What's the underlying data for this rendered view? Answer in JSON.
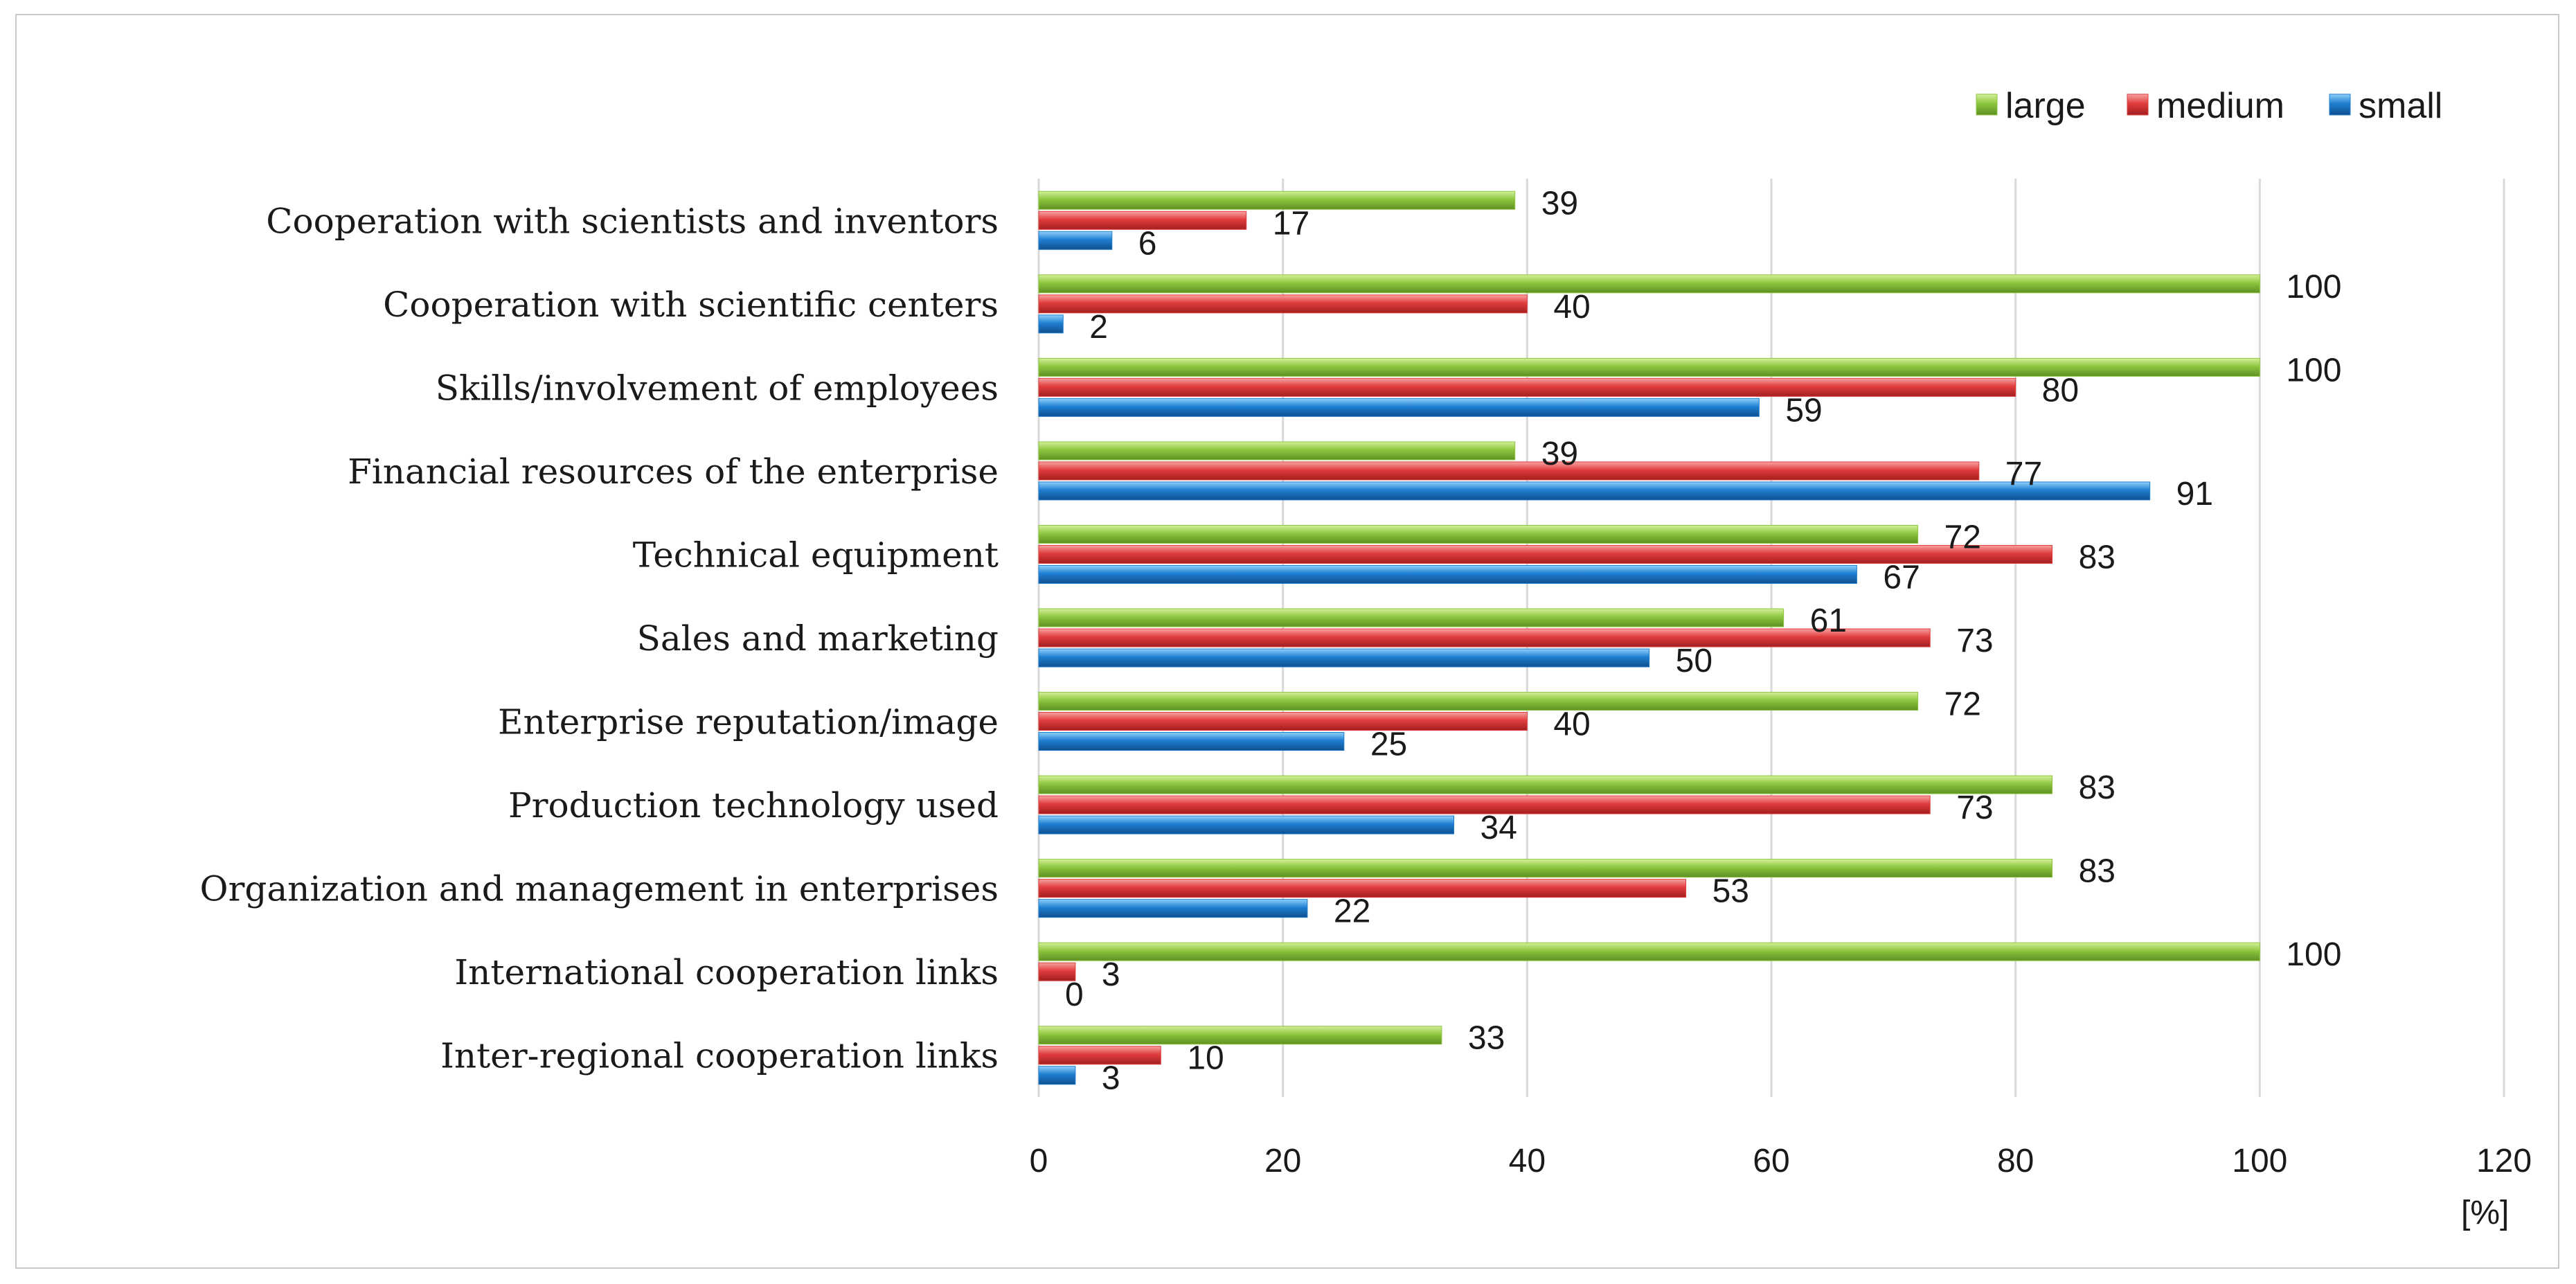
{
  "chart_data": {
    "type": "bar",
    "orientation": "horizontal",
    "categories": [
      "Cooperation with scientists and inventors",
      "Cooperation with scientific centers",
      "Skills/involvement of employees",
      "Financial resources of the enterprise",
      "Technical equipment",
      "Sales and marketing",
      "Enterprise reputation/image",
      "Production technology used",
      "Organization and management in enterprises",
      "International cooperation links",
      "Inter-regional cooperation links"
    ],
    "series": [
      {
        "name": "large",
        "color": "#8dc63f",
        "values": [
          39,
          100,
          100,
          39,
          72,
          61,
          72,
          83,
          83,
          100,
          33
        ]
      },
      {
        "name": "medium",
        "color": "#e03c3c",
        "values": [
          17,
          40,
          80,
          77,
          83,
          73,
          40,
          73,
          53,
          3,
          10
        ]
      },
      {
        "name": "small",
        "color": "#1f7fd1",
        "values": [
          6,
          2,
          59,
          91,
          67,
          50,
          25,
          34,
          22,
          0,
          3
        ]
      }
    ],
    "xlim": [
      0,
      120
    ],
    "xticks": [
      "0",
      "20",
      "40",
      "60",
      "80",
      "100",
      "120"
    ],
    "unit_label": "[%]",
    "legend_position": "top-right",
    "grid": "vertical"
  }
}
